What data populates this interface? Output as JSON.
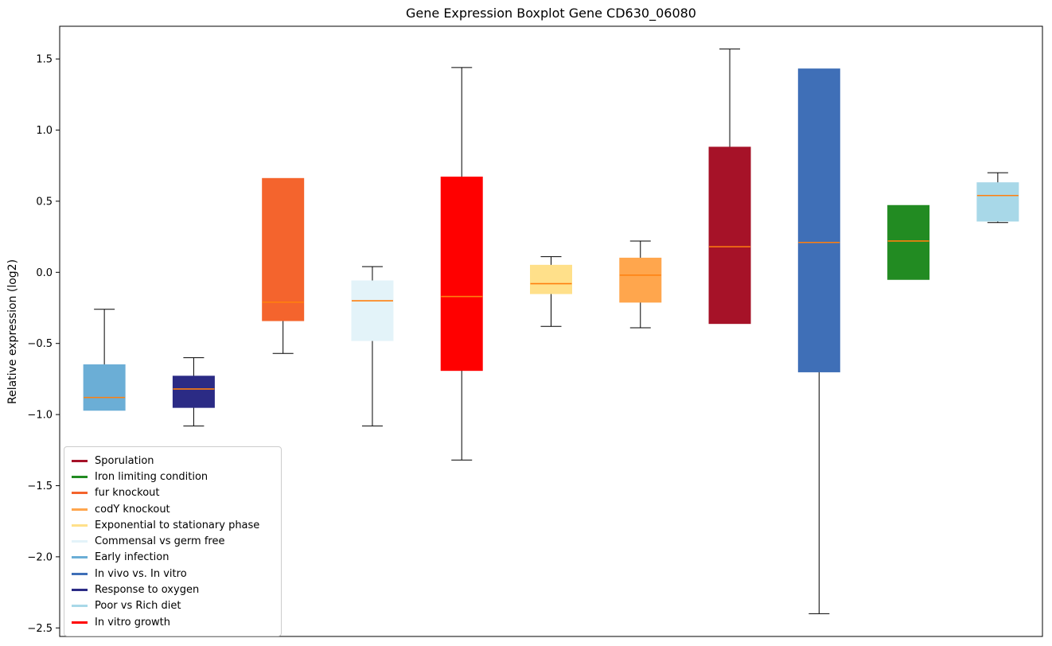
{
  "chart_data": {
    "type": "boxplot",
    "title": "Gene Expression Boxplot Gene CD630_06080",
    "ylabel": "Relative expression (log2)",
    "ylim": [
      -2.56,
      1.73
    ],
    "grid": false,
    "yticks": [
      {
        "value": 1.5,
        "label": "1.5"
      },
      {
        "value": 1.0,
        "label": "1.0"
      },
      {
        "value": 0.5,
        "label": "0.5"
      },
      {
        "value": 0.0,
        "label": "0.0"
      },
      {
        "value": -0.5,
        "label": "−0.5"
      },
      {
        "value": -1.0,
        "label": "−1.0"
      },
      {
        "value": -1.5,
        "label": "−1.5"
      },
      {
        "value": -2.0,
        "label": "−2.0"
      },
      {
        "value": -2.5,
        "label": "−2.5"
      }
    ],
    "median_color": "#ff7f0e",
    "whisker_color": "#000000",
    "boxes": [
      {
        "name": "Early infection",
        "color": "#6baed6",
        "whisker_low": -0.97,
        "q1": -0.97,
        "median": -0.88,
        "q3": -0.65,
        "whisker_high": -0.26
      },
      {
        "name": "Response to oxygen",
        "color": "#2b2b85",
        "whisker_low": -1.08,
        "q1": -0.95,
        "median": -0.82,
        "q3": -0.73,
        "whisker_high": -0.6
      },
      {
        "name": "fur knockout",
        "color": "#f4642d",
        "whisker_low": -0.57,
        "q1": -0.34,
        "median": -0.21,
        "q3": 0.66,
        "whisker_high": 0.66
      },
      {
        "name": "Commensal vs germ free",
        "color": "#e3f3f9",
        "whisker_low": -1.08,
        "q1": -0.48,
        "median": -0.2,
        "q3": -0.06,
        "whisker_high": 0.04
      },
      {
        "name": "In vitro growth",
        "color": "#ff0000",
        "whisker_low": -1.32,
        "q1": -0.69,
        "median": -0.17,
        "q3": 0.67,
        "whisker_high": 1.44
      },
      {
        "name": "Exponential to stationary phase",
        "color": "#ffe08a",
        "whisker_low": -0.38,
        "q1": -0.15,
        "median": -0.08,
        "q3": 0.05,
        "whisker_high": 0.11
      },
      {
        "name": "codY knockout",
        "color": "#ffa64d",
        "whisker_low": -0.39,
        "q1": -0.21,
        "median": -0.02,
        "q3": 0.1,
        "whisker_high": 0.22
      },
      {
        "name": "Sporulation",
        "color": "#a61228",
        "whisker_low": -0.36,
        "q1": -0.36,
        "median": 0.18,
        "q3": 0.88,
        "whisker_high": 1.57
      },
      {
        "name": "In vivo vs. In vitro",
        "color": "#3f6fb7",
        "whisker_low": -2.4,
        "q1": -0.7,
        "median": 0.21,
        "q3": 1.43,
        "whisker_high": 1.43
      },
      {
        "name": "Iron limiting condition",
        "color": "#228b22",
        "whisker_low": -0.05,
        "q1": -0.05,
        "median": 0.22,
        "q3": 0.47,
        "whisker_high": 0.47
      },
      {
        "name": "Poor vs Rich diet",
        "color": "#a8d8e8",
        "whisker_low": 0.35,
        "q1": 0.36,
        "median": 0.54,
        "q3": 0.63,
        "whisker_high": 0.7
      }
    ],
    "legend": {
      "position": "lower left",
      "entries": [
        {
          "label": "Sporulation",
          "color": "#a61228"
        },
        {
          "label": "Iron limiting condition",
          "color": "#228b22"
        },
        {
          "label": "fur knockout",
          "color": "#f4642d"
        },
        {
          "label": "codY knockout",
          "color": "#ffa64d"
        },
        {
          "label": "Exponential to stationary phase",
          "color": "#ffe08a"
        },
        {
          "label": "Commensal vs germ free",
          "color": "#e3f3f9"
        },
        {
          "label": "Early infection",
          "color": "#6baed6"
        },
        {
          "label": "In vivo vs. In vitro",
          "color": "#3f6fb7"
        },
        {
          "label": "Response to oxygen",
          "color": "#2b2b85"
        },
        {
          "label": "Poor vs Rich diet",
          "color": "#a8d8e8"
        },
        {
          "label": "In vitro growth",
          "color": "#ff0000"
        }
      ]
    }
  }
}
